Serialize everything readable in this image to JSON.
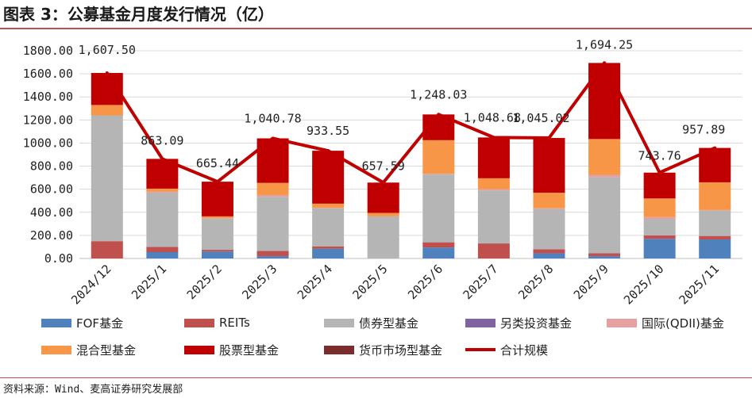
{
  "title": "图表 3：公募基金月度发行情况（亿）",
  "source": "资料来源：Wind、麦高证券研究发展部",
  "colors": {
    "FOF": "#4f81bd",
    "REITs": "#c0504d",
    "bond": "#b5b5b5",
    "alt": "#8064a2",
    "qdii": "#e6a0a0",
    "mixed": "#f79646",
    "equity": "#c00000",
    "money": "#7b2c2c",
    "total": "#c00000",
    "grid": "#d9d9d9"
  },
  "chart_data": {
    "type": "bar",
    "stacked": true,
    "categories": [
      "2024/12",
      "2025/1",
      "2025/2",
      "2025/3",
      "2025/4",
      "2025/5",
      "2025/6",
      "2025/7",
      "2025/8",
      "2025/9",
      "2025/10",
      "2025/11"
    ],
    "ylim": [
      0,
      1800
    ],
    "yticks": [
      "0.00",
      "200.00",
      "400.00",
      "600.00",
      "800.00",
      "1000.00",
      "1200.00",
      "1400.00",
      "1600.00",
      "1800.00"
    ],
    "grid": true,
    "series": [
      {
        "key": "FOF",
        "name": "FOF基金",
        "values": [
          0,
          55,
          60,
          20,
          85,
          0,
          95,
          0,
          45,
          20,
          170,
          165
        ]
      },
      {
        "key": "REITs",
        "name": "REITs",
        "values": [
          150,
          45,
          15,
          45,
          20,
          0,
          45,
          130,
          35,
          25,
          30,
          30
        ]
      },
      {
        "key": "bond",
        "name": "债券型基金",
        "values": [
          1090,
          470,
          270,
          470,
          330,
          365,
          590,
          460,
          350,
          660,
          140,
          220
        ]
      },
      {
        "key": "alt",
        "name": "另类投资基金",
        "values": [
          0,
          0,
          0,
          0,
          0,
          0,
          0,
          0,
          0,
          0,
          0,
          0
        ]
      },
      {
        "key": "qdii",
        "name": "国际(QDII)基金",
        "values": [
          0,
          10,
          5,
          15,
          5,
          0,
          5,
          10,
          5,
          20,
          20,
          5
        ]
      },
      {
        "key": "mixed",
        "name": "混合型基金",
        "values": [
          90,
          25,
          15,
          105,
          35,
          30,
          290,
          95,
          135,
          310,
          160,
          240
        ]
      },
      {
        "key": "equity",
        "name": "股票型基金",
        "values": [
          277.5,
          258.09,
          300.44,
          385.78,
          458.55,
          262.59,
          223.03,
          353.68,
          474.02,
          659.25,
          223.76,
          297.89
        ]
      },
      {
        "key": "money",
        "name": "货币市场型基金",
        "values": [
          0,
          0,
          0,
          0,
          0,
          0,
          0,
          0,
          0,
          0,
          0,
          0
        ]
      }
    ],
    "line": {
      "key": "total",
      "name": "合计规模",
      "values": [
        1607.5,
        863.09,
        665.44,
        1040.78,
        933.55,
        657.59,
        1248.03,
        1048.68,
        1045.02,
        1694.25,
        743.76,
        957.89
      ],
      "labels": [
        "1,607.50",
        "863.09",
        "665.44",
        "1,040.78",
        "933.55",
        "657.59",
        "1,248.03",
        "1,048.68",
        "1,045.02",
        "1,694.25",
        "743.76",
        "957.89"
      ]
    }
  }
}
